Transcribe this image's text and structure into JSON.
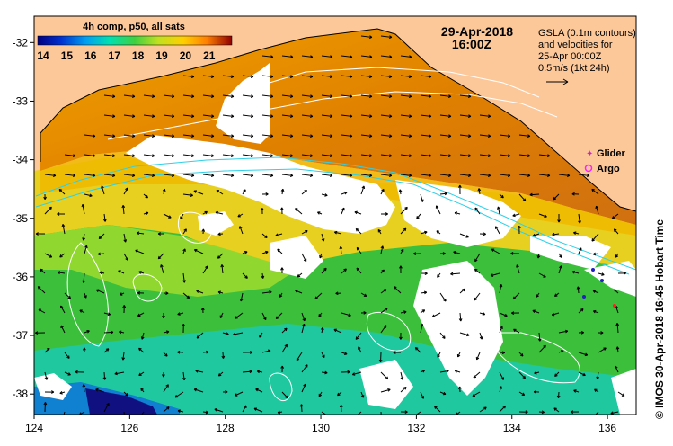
{
  "header": {
    "date": "29-Apr-2018",
    "time": "16:00Z",
    "colorbar_title": "4h comp, p50, all sats",
    "colorbar_ticks": [
      "14",
      "15",
      "16",
      "17",
      "18",
      "19",
      "20",
      "21"
    ],
    "gsla_lines": [
      "GSLA (0.1m contours)",
      "and velocities for",
      "25-Apr 00:00Z",
      "0.5m/s (1kt 24h)"
    ],
    "legend_glider": "Glider",
    "legend_argo": "Argo",
    "side_text": "© IMOS 30-Apr-2018 16:45 Hobart Time"
  },
  "axes": {
    "x_ticks": [
      "124",
      "126",
      "128",
      "130",
      "132",
      "134",
      "136"
    ],
    "y_ticks": [
      "-32",
      "-33",
      "-34",
      "-35",
      "-36",
      "-37",
      "-38"
    ]
  },
  "colors": {
    "land": "#fcc89a",
    "no_data": "#ffffff",
    "contour": "#ffffff",
    "isobath": "#30d0e8",
    "glider": "#d020d0",
    "argo": "#ff20ff"
  },
  "colorbar_colors": [
    "#000080",
    "#0030d0",
    "#00a0f0",
    "#00e0b0",
    "#40d040",
    "#c0e020",
    "#ffd000",
    "#ff8000",
    "#e03000",
    "#900000"
  ]
}
